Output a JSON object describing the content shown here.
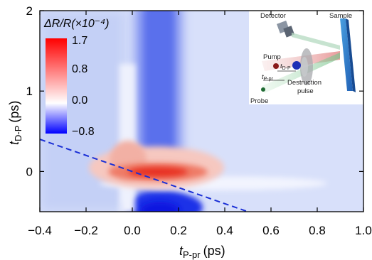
{
  "chart_data": {
    "type": "heatmap",
    "title": "",
    "xlabel": {
      "main": "t",
      "sub": "P-pr",
      "unit": "(ps)"
    },
    "ylabel": {
      "main": "t",
      "sub": "D-P",
      "unit": "(ps)"
    },
    "xlim": [
      -0.4,
      1.0
    ],
    "ylim": [
      -0.5,
      2.0
    ],
    "x_ticks": [
      "−0.4",
      "−0.2",
      "0.0",
      "0.2",
      "0.4",
      "0.6",
      "0.8",
      "1.0"
    ],
    "x_tick_values": [
      -0.4,
      -0.2,
      0.0,
      0.2,
      0.4,
      0.6,
      0.8,
      1.0
    ],
    "y_ticks": [
      "0",
      "1",
      "2"
    ],
    "y_tick_values": [
      0,
      1,
      2
    ],
    "grid": false,
    "colorbar": {
      "title": "ΔR/R(×10⁻⁴)",
      "placement": "top-left",
      "min": -0.8,
      "max": 1.7,
      "zero": 0.0,
      "ticks": [
        "1.7",
        "0.8",
        "0.0",
        "−0.8"
      ],
      "tick_values": [
        1.7,
        0.8,
        0.0,
        -0.8
      ],
      "colors": {
        "max": "#ff0000",
        "zero": "#ffffff",
        "min": "#0000ff"
      }
    },
    "features": [
      {
        "name": "positive-peak",
        "x_range": [
          0.0,
          0.45
        ],
        "y": 0.0,
        "peak": 1.7
      },
      {
        "name": "negative-band",
        "x_range": [
          0.05,
          0.35
        ],
        "y_range": [
          -0.5,
          2.0
        ],
        "value": -0.5
      },
      {
        "name": "diagonal-line",
        "x1": -0.4,
        "y1": 0.4,
        "x2": 0.5,
        "y2": -0.5,
        "color": "#1a2fd6",
        "style": "dashed"
      }
    ],
    "inset": {
      "placement": "top-right",
      "labels": {
        "detector": "Detector",
        "sample": "Sample",
        "pump": "Pump",
        "tdp_main": "t",
        "tdp_sub": "D-P",
        "tppr_main": "t",
        "tppr_sub": "P-pr",
        "destruction": "Destruction",
        "pulse": "pulse",
        "probe": "Probe"
      }
    }
  }
}
